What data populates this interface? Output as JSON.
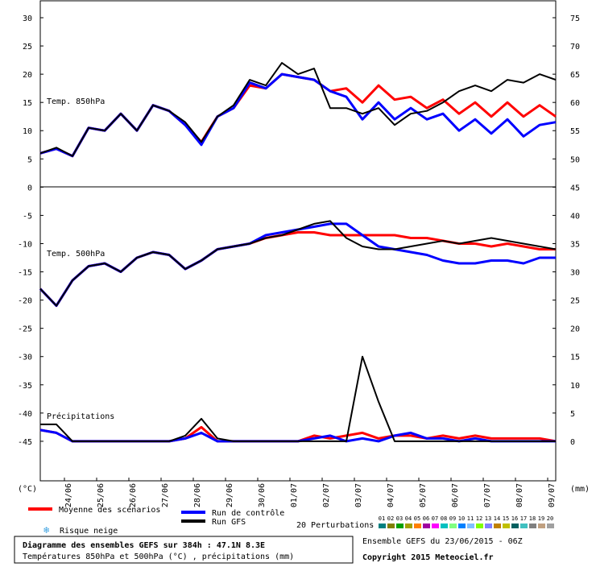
{
  "chart_data": {
    "type": "line",
    "title": "Diagramme des ensembles GEFS sur 384h : 47.1N 8.3E",
    "subtitle": "Températures 850hPa et 500hPa (°C) , précipitations (mm)",
    "run_info": "Ensemble GEFS du 23/06/2015 - 06Z",
    "copyright": "Copyright 2015 Meteociel.fr",
    "ylabel": "(°C)",
    "y2label": "(mm)",
    "panel_labels": [
      "Temp. 850hPa",
      "Temp. 500hPa",
      "Précipitations"
    ],
    "x": [
      0,
      12,
      24,
      36,
      48,
      60,
      72,
      84,
      96,
      108,
      120,
      132,
      144,
      156,
      168,
      180,
      192,
      204,
      216,
      228,
      240,
      252,
      264,
      276,
      288,
      300,
      312,
      324,
      336,
      348,
      360,
      372,
      384
    ],
    "xlim": [
      0,
      384
    ],
    "xticks": [
      {
        "value": 18,
        "label": "24/06"
      },
      {
        "value": 42,
        "label": "25/06"
      },
      {
        "value": 66,
        "label": "26/06"
      },
      {
        "value": 90,
        "label": "27/06"
      },
      {
        "value": 114,
        "label": "28/06"
      },
      {
        "value": 138,
        "label": "29/06"
      },
      {
        "value": 162,
        "label": "30/06"
      },
      {
        "value": 186,
        "label": "01/07"
      },
      {
        "value": 210,
        "label": "02/07"
      },
      {
        "value": 234,
        "label": "03/07"
      },
      {
        "value": 258,
        "label": "04/07"
      },
      {
        "value": 282,
        "label": "05/07"
      },
      {
        "value": 306,
        "label": "06/07"
      },
      {
        "value": 330,
        "label": "07/07"
      },
      {
        "value": 354,
        "label": "08/07"
      },
      {
        "value": 378,
        "label": "09/07"
      }
    ],
    "ylim": [
      -52,
      30
    ],
    "yticks": [
      30,
      25,
      20,
      15,
      10,
      5,
      0,
      -5,
      -10,
      -15,
      -20,
      -25,
      -30,
      -35,
      -40,
      -45
    ],
    "y2lim": [
      -7,
      75
    ],
    "y2ticks": [
      75,
      70,
      65,
      60,
      55,
      50,
      45,
      40,
      35,
      30,
      25,
      20,
      15,
      10,
      5,
      0
    ],
    "grid": false,
    "series": [
      {
        "name": "Moyenne des scénarios",
        "color": "#ff0000",
        "width": 3,
        "temp_850": [
          6,
          6.8,
          5.5,
          10.5,
          10,
          13,
          10,
          14.5,
          13.5,
          11,
          8,
          12.5,
          14,
          18,
          17.5,
          20,
          19.5,
          19,
          17,
          17.5,
          15,
          18,
          15.5,
          16,
          14,
          15.5,
          13,
          15,
          12.5,
          15,
          12.5,
          14.5,
          12.5
        ],
        "temp_500": [
          -18,
          -21,
          -16.5,
          -14,
          -13.5,
          -15,
          -12.5,
          -11.5,
          -12,
          -14.5,
          -13,
          -11,
          -10.5,
          -10,
          -9,
          -8.5,
          -8,
          -8,
          -8.5,
          -8.5,
          -8.5,
          -8.5,
          -8.5,
          -9,
          -9,
          -9.5,
          -10,
          -10,
          -10.5,
          -10,
          -10.5,
          -11,
          -11
        ],
        "precipitations": [
          2,
          1.5,
          0,
          0,
          0,
          0,
          0,
          0,
          0,
          0.5,
          2.5,
          0,
          0,
          0,
          0,
          0,
          0,
          1,
          0.5,
          1,
          1.5,
          0.5,
          1,
          1,
          0.5,
          1,
          0.5,
          1,
          0.5,
          0.5,
          0.5,
          0.5,
          0
        ]
      },
      {
        "name": "Run de contrôle",
        "color": "#0000ff",
        "width": 3,
        "temp_850": [
          6,
          6.8,
          5.5,
          10.5,
          10,
          13,
          10,
          14.5,
          13.5,
          11,
          7.5,
          12.5,
          14,
          18.5,
          17.5,
          20,
          19.5,
          19,
          17,
          16,
          12,
          15,
          12,
          14,
          12,
          13,
          10,
          12,
          9.5,
          12,
          9,
          11,
          11.5
        ],
        "temp_500": [
          -18,
          -21,
          -16.5,
          -14,
          -13.5,
          -15,
          -12.5,
          -11.5,
          -12,
          -14.5,
          -13,
          -11,
          -10.5,
          -10,
          -8.5,
          -8,
          -7.5,
          -7,
          -6.5,
          -6.5,
          -8.5,
          -10.5,
          -11,
          -11.5,
          -12,
          -13,
          -13.5,
          -13.5,
          -13,
          -13,
          -13.5,
          -12.5,
          -12.5
        ],
        "precipitations": [
          2,
          1.5,
          0,
          0,
          0,
          0,
          0,
          0,
          0,
          0.5,
          1.5,
          0,
          0,
          0,
          0,
          0,
          0,
          0.5,
          1,
          0,
          0.5,
          0,
          1,
          1.5,
          0.5,
          0.5,
          0,
          0.5,
          0,
          0,
          0,
          0,
          0
        ]
      },
      {
        "name": "Run GFS",
        "color": "#000000",
        "width": 2,
        "temp_850": [
          6,
          7,
          5.5,
          10.5,
          10,
          13,
          10,
          14.5,
          13.5,
          11.5,
          8,
          12.5,
          14.5,
          19,
          18,
          22,
          20,
          21,
          14,
          14,
          13,
          14,
          11,
          13,
          13.5,
          15,
          17,
          18,
          17,
          19,
          18.5,
          20,
          19
        ],
        "temp_500": [
          -18,
          -21,
          -16.5,
          -14,
          -13.5,
          -15,
          -12.5,
          -11.5,
          -12,
          -14.5,
          -13,
          -11,
          -10.5,
          -10,
          -9,
          -8.5,
          -7.5,
          -6.5,
          -6,
          -9,
          -10.5,
          -11,
          -11,
          -10.5,
          -10,
          -9.5,
          -10,
          -9.5,
          -9,
          -9.5,
          -10,
          -10.5,
          -11
        ],
        "precipitations": [
          3,
          3,
          0,
          0,
          0,
          0,
          0,
          0,
          0,
          1,
          4,
          0.5,
          0,
          0,
          0,
          0,
          0,
          0,
          0,
          0,
          15,
          7,
          0,
          0,
          0,
          0,
          0,
          0,
          0,
          0,
          0,
          0,
          0
        ]
      }
    ],
    "snow_risk_label": "Risque neige",
    "perturbations_label": "20 Perturbations",
    "perturbation_numbers": [
      "01",
      "02",
      "03",
      "04",
      "05",
      "06",
      "07",
      "08",
      "09",
      "10",
      "11",
      "12",
      "13",
      "14",
      "15",
      "16",
      "17",
      "18",
      "19",
      "20"
    ],
    "perturbation_colors": [
      "#008080",
      "#808000",
      "#00a000",
      "#a0a000",
      "#ff8000",
      "#a000a0",
      "#ff00ff",
      "#00c0c0",
      "#80ff80",
      "#0080ff",
      "#80c0ff",
      "#80ff00",
      "#8080ff",
      "#c08000",
      "#c0c000",
      "#006060",
      "#40c0c0",
      "#808080",
      "#c0a080",
      "#a0a0a0"
    ]
  }
}
